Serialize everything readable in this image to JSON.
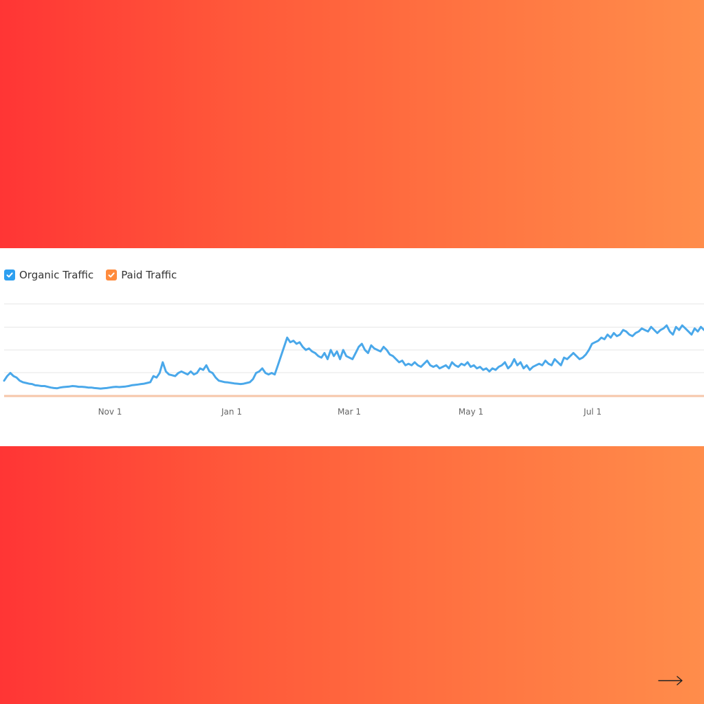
{
  "legend": {
    "organic_label": "Organic Traffic",
    "paid_label": "Paid Traffic"
  },
  "colors": {
    "organic": "#2d9ff0",
    "organic_line": "#4aa8ea",
    "paid": "#ff8b3d",
    "paid_line": "#f6c6a8",
    "grid": "#e4e4e4"
  },
  "chart_data": {
    "type": "line",
    "x_ticks": [
      "Nov 1",
      "Jan 1",
      "Mar 1",
      "May 1",
      "Jul 1"
    ],
    "grid": true,
    "series": [
      {
        "name": "Organic Traffic",
        "x_range": [
          "Sep 1",
          "Aug 31"
        ],
        "values": [
          1,
          1.3,
          1.5,
          1.3,
          1.2,
          1,
          0.9,
          0.85,
          0.8,
          0.78,
          0.7,
          0.68,
          0.65,
          0.65,
          0.6,
          0.55,
          0.52,
          0.5,
          0.55,
          0.58,
          0.6,
          0.62,
          0.65,
          0.63,
          0.6,
          0.6,
          0.58,
          0.55,
          0.55,
          0.52,
          0.5,
          0.48,
          0.5,
          0.52,
          0.55,
          0.58,
          0.6,
          0.58,
          0.6,
          0.62,
          0.65,
          0.7,
          0.72,
          0.75,
          0.78,
          0.8,
          0.85,
          0.9,
          1.3,
          1.2,
          1.5,
          2.2,
          1.6,
          1.4,
          1.35,
          1.3,
          1.5,
          1.6,
          1.5,
          1.4,
          1.6,
          1.4,
          1.5,
          1.8,
          1.7,
          2.0,
          1.6,
          1.5,
          1.2,
          1.0,
          0.95,
          0.9,
          0.88,
          0.85,
          0.82,
          0.8,
          0.78,
          0.8,
          0.85,
          0.9,
          1.1,
          1.5,
          1.6,
          1.8,
          1.5,
          1.4,
          1.5,
          1.4,
          2.0,
          2.6,
          3.2,
          3.8,
          3.5,
          3.6,
          3.4,
          3.5,
          3.2,
          3.0,
          3.1,
          2.9,
          2.8,
          2.6,
          2.5,
          2.8,
          2.4,
          3.0,
          2.6,
          2.9,
          2.4,
          3.0,
          2.6,
          2.5,
          2.4,
          2.8,
          3.2,
          3.4,
          3.0,
          2.8,
          3.3,
          3.1,
          3.0,
          2.9,
          3.2,
          3.0,
          2.7,
          2.6,
          2.4,
          2.2,
          2.3,
          2.0,
          2.1,
          2.0,
          2.2,
          2.0,
          1.9,
          2.1,
          2.3,
          2.0,
          1.9,
          2.0,
          1.8,
          1.9,
          2.0,
          1.8,
          2.2,
          2.0,
          1.9,
          2.1,
          2.0,
          2.2,
          1.9,
          2.0,
          1.8,
          1.9,
          1.7,
          1.8,
          1.6,
          1.8,
          1.7,
          1.9,
          2.0,
          2.2,
          1.8,
          2.0,
          2.4,
          2.0,
          2.2,
          1.8,
          2.0,
          1.7,
          1.9,
          2.0,
          2.1,
          2.0,
          2.3,
          2.1,
          2.0,
          2.4,
          2.2,
          2.0,
          2.5,
          2.4,
          2.6,
          2.8,
          2.6,
          2.4,
          2.5,
          2.7,
          3.0,
          3.4,
          3.5,
          3.6,
          3.8,
          3.7,
          4.0,
          3.8,
          4.1,
          3.9,
          4.0,
          4.3,
          4.2,
          4.0,
          3.9,
          4.1,
          4.2,
          4.4,
          4.3,
          4.2,
          4.5,
          4.3,
          4.1,
          4.3,
          4.4,
          4.6,
          4.2,
          4.0,
          4.5,
          4.3,
          4.6,
          4.4,
          4.2,
          4.0,
          4.4,
          4.2,
          4.5,
          4.3
        ]
      },
      {
        "name": "Paid Traffic",
        "values": [
          0,
          0
        ]
      }
    ],
    "ylim": [
      0,
      6
    ]
  }
}
